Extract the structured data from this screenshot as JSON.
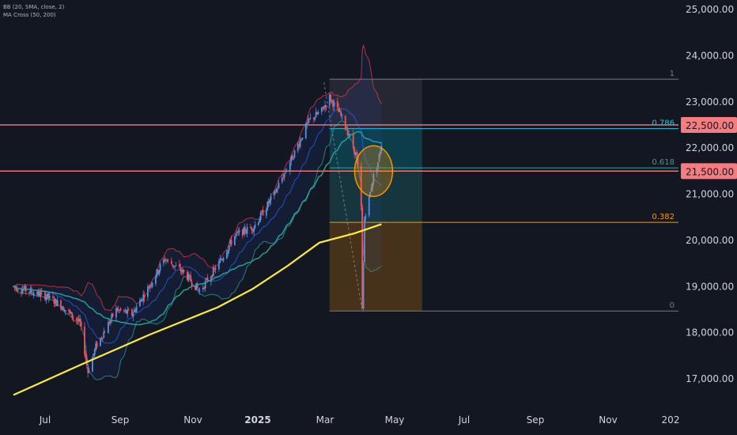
{
  "indicators": {
    "bb_label": "BB (20, SMA, close, 2)",
    "ma_label": "MA Cross (50, 200)"
  },
  "colors": {
    "background": "#131722",
    "axis_text": "#d1d4dc",
    "up_candle": "#5b8fd6",
    "down_candle": "#e8555f",
    "bb_band": "#f23645",
    "bb_lower": "#26a69a",
    "bb_basis": "#2962ff",
    "ma50": "#26a69a",
    "ma200": "#ffeb3b",
    "resistance": "#f77c80",
    "highlight_circle": "#ff9800"
  },
  "chart_data": {
    "type": "candlestick",
    "y_axis": {
      "min": 16500,
      "max": 25200,
      "tick_labels": [
        "25,000.00",
        "24,000.00",
        "23,000.00",
        "22,000.00",
        "21,000.00",
        "20,000.00",
        "19,000.00",
        "18,000.00",
        "17,000.00"
      ],
      "tick_values": [
        25000,
        24000,
        23000,
        22000,
        21000,
        20000,
        19000,
        18000,
        17000
      ]
    },
    "x_axis": {
      "labels": [
        "Jul",
        "Sep",
        "Nov",
        "2025",
        "Mar",
        "May",
        "Jul",
        "Sep",
        "Nov",
        "202"
      ],
      "label_bold": [
        false,
        false,
        false,
        true,
        false,
        false,
        false,
        false,
        false,
        false
      ]
    },
    "price_path": [
      [
        "2024-06-03",
        19000
      ],
      [
        "2024-06-17",
        18900
      ],
      [
        "2024-07-01",
        18800
      ],
      [
        "2024-07-15",
        18600
      ],
      [
        "2024-08-01",
        18200
      ],
      [
        "2024-08-08",
        17150
      ],
      [
        "2024-08-15",
        17700
      ],
      [
        "2024-09-02",
        18500
      ],
      [
        "2024-09-16",
        18400
      ],
      [
        "2024-10-01",
        19000
      ],
      [
        "2024-10-15",
        19600
      ],
      [
        "2024-11-01",
        19300
      ],
      [
        "2024-11-15",
        18900
      ],
      [
        "2024-12-02",
        19500
      ],
      [
        "2024-12-16",
        20100
      ],
      [
        "2025-01-02",
        20300
      ],
      [
        "2025-01-20",
        21000
      ],
      [
        "2025-02-05",
        21800
      ],
      [
        "2025-02-20",
        22600
      ],
      [
        "2025-03-03",
        22800
      ],
      [
        "2025-03-10",
        23100
      ],
      [
        "2025-03-20",
        22700
      ],
      [
        "2025-03-27",
        22300
      ],
      [
        "2025-04-03",
        21800
      ],
      [
        "2025-04-07",
        20700
      ],
      [
        "2025-04-08",
        18500
      ],
      [
        "2025-04-10",
        20500
      ],
      [
        "2025-04-14",
        20900
      ],
      [
        "2025-04-17",
        21300
      ],
      [
        "2025-04-22",
        21700
      ],
      [
        "2025-04-25",
        22100
      ]
    ],
    "ma200_path": [
      [
        "2024-06-03",
        16650
      ],
      [
        "2024-08-01",
        17300
      ],
      [
        "2024-10-01",
        17950
      ],
      [
        "2024-12-01",
        18550
      ],
      [
        "2025-01-01",
        18950
      ],
      [
        "2025-02-01",
        19450
      ],
      [
        "2025-03-01",
        19950
      ],
      [
        "2025-04-01",
        20150
      ],
      [
        "2025-04-25",
        20350
      ]
    ],
    "horizontal_lines": [
      {
        "value": 22500,
        "label": "22,500.00"
      },
      {
        "value": 21500,
        "label": "21,500.00"
      }
    ],
    "fibonacci": {
      "start": "2025-03-10",
      "end": "2025-05-31",
      "high": 23490,
      "low": 18470,
      "levels": [
        {
          "level": 1,
          "label": "1",
          "value": 23490,
          "color": "#787b86"
        },
        {
          "level": 0.786,
          "label": "0.786",
          "value": 22420,
          "color": "#26c6da"
        },
        {
          "level": 0.618,
          "label": "0.618",
          "value": 21570,
          "color": "#26a69a"
        },
        {
          "level": 0.382,
          "label": "0.382",
          "value": 20390,
          "color": "#ff9800"
        },
        {
          "level": 0,
          "label": "0",
          "value": 18470,
          "color": "#787b86"
        }
      ]
    },
    "highlight": {
      "date": "2025-04-18",
      "value": 21500
    }
  }
}
